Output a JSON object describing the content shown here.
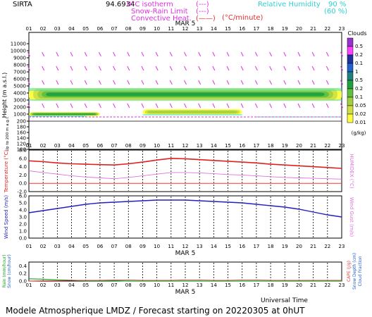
{
  "header": {
    "station": "SIRTA",
    "station_code": "94.6934",
    "legend_0c": "0°C isotherm",
    "legend_0c_sym": "(---)",
    "legend_snowrain": "Snow-Rain Limit",
    "legend_snowrain_sym": "(---)",
    "legend_convective": "Convective Heat.",
    "legend_convective_sym": "(——)",
    "legend_unit": "(°C/minute)",
    "legend_rh": "Relative Humidity",
    "legend_rh_90": "90 %",
    "legend_rh_60": "(60 %)"
  },
  "footer": {
    "universal_time": "Universal Time",
    "model_caption": "Modele Atmospherique LMDZ / Forecast starting on 20220305 at 0hUT"
  },
  "colors": {
    "temperature": "#e02020",
    "humidex": "#e070e0",
    "wind": "#2020c0",
    "rain": "#20a020",
    "snow": "#2060d0",
    "cape": "#e04040",
    "rh": "#30e0e0",
    "zero_line": "#ff3030"
  },
  "chart_data": [
    {
      "type": "heatmap",
      "panel": "clouds",
      "date_label": "MAR  5",
      "hours": [
        "01",
        "02",
        "03",
        "04",
        "05",
        "06",
        "07",
        "08",
        "09",
        "10",
        "11",
        "12",
        "13",
        "14",
        "15",
        "16",
        "17",
        "18",
        "19",
        "20",
        "21",
        "22",
        "23"
      ],
      "ylabel": "Height  (m a.s.l.)",
      "ylabel_low": "Up to 200 m a.g.l.",
      "yticks": [
        "11000",
        "10000",
        "9000",
        "8000",
        "7000",
        "6000",
        "5000",
        "4000",
        "3000",
        "2000",
        "1000",
        "200",
        "180",
        "160",
        "140",
        "120",
        "100"
      ],
      "colorbar_title": "Clouds",
      "colorbar_unit": "(g/kg)",
      "colorbar_labels": [
        "0.5",
        "0.2",
        "0.1",
        "1",
        "0.5",
        "0.2",
        "0.1",
        "0.05",
        "0.02",
        "0.01"
      ],
      "colorbar_colors": [
        "#9b30d0",
        "#ff40ff",
        "#2030a0",
        "#2060d0",
        "#208080",
        "#20a040",
        "#60c040",
        "#a0d040",
        "#d0e040",
        "#ffff40"
      ],
      "layers": [
        {
          "name": "mid-level cloud band",
          "top_m": 4700,
          "base_m": 2900,
          "hour_from": 1,
          "hour_to": 23,
          "max_g_kg": 0.1
        },
        {
          "name": "low cloud early",
          "top_m": 1300,
          "base_m": 700,
          "hour_from": 1,
          "hour_to": 6,
          "max_g_kg": 0.1
        },
        {
          "name": "low cloud midday",
          "top_m": 1700,
          "base_m": 900,
          "hour_from": 9,
          "hour_to": 16,
          "max_g_kg": 0.05
        }
      ]
    },
    {
      "type": "line",
      "panel": "temperature",
      "date_label": "MAR  5",
      "ylabel": "Temperature (°C)",
      "ylabel_right": "HUMIDEX (°C)",
      "yticks": [
        "8.0",
        "6.0",
        "4.0",
        "2.0",
        "0.0",
        "-2.0"
      ],
      "ylim": [
        -2,
        8
      ],
      "x": [
        1,
        2,
        3,
        4,
        5,
        6,
        7,
        8,
        9,
        10,
        11,
        12,
        13,
        14,
        15,
        16,
        17,
        18,
        19,
        20,
        21,
        22,
        23
      ],
      "series": [
        {
          "name": "Temperature",
          "values": [
            5.4,
            5.2,
            4.9,
            4.7,
            4.6,
            4.5,
            4.4,
            4.7,
            5.1,
            5.6,
            6.0,
            5.9,
            5.7,
            5.5,
            5.3,
            5.1,
            4.9,
            4.6,
            4.4,
            4.2,
            4.0,
            3.8,
            3.6
          ]
        },
        {
          "name": "HUMIDEX",
          "values": [
            3.0,
            2.6,
            2.2,
            1.8,
            1.5,
            1.3,
            1.1,
            1.4,
            1.8,
            2.2,
            2.6,
            2.6,
            2.5,
            2.3,
            2.1,
            2.0,
            1.8,
            1.6,
            1.4,
            1.3,
            1.2,
            1.1,
            1.0
          ]
        }
      ]
    },
    {
      "type": "line",
      "panel": "wind",
      "ylabel": "Wind Speed (m/s)",
      "ylabel_right": "Wind Gust (m/s)",
      "yticks": [
        "6.0",
        "5.0",
        "4.0",
        "3.0",
        "2.0",
        "1.0",
        "0.0"
      ],
      "ylim": [
        0,
        6
      ],
      "x": [
        1,
        2,
        3,
        4,
        5,
        6,
        7,
        8,
        9,
        10,
        11,
        12,
        13,
        14,
        15,
        16,
        17,
        18,
        19,
        20,
        21,
        22,
        23
      ],
      "series": [
        {
          "name": "Wind Speed",
          "values": [
            3.6,
            3.9,
            4.2,
            4.5,
            4.8,
            5.0,
            5.1,
            5.2,
            5.3,
            5.4,
            5.4,
            5.4,
            5.3,
            5.2,
            5.1,
            5.0,
            4.8,
            4.6,
            4.4,
            4.1,
            3.7,
            3.3,
            3.0
          ]
        }
      ]
    },
    {
      "type": "line",
      "panel": "precip",
      "date_label": "MAR  5",
      "ylabel": "Rain (mm/hour)",
      "ylabel2": "Snow (cm/hour)",
      "ylabel_right": "CAPE (J/g)",
      "ylabel_right2": "Snow Depth (cm)",
      "ylabel_right3": "Cloud Fraction",
      "yticks": [
        "0.4",
        "0.2",
        "0.0"
      ],
      "ylim": [
        0,
        0.5
      ],
      "x": [
        1,
        2,
        3,
        4,
        5,
        6,
        7,
        8,
        9,
        10,
        11,
        12,
        13,
        14,
        15,
        16,
        17,
        18,
        19,
        20,
        21,
        22,
        23
      ],
      "series": [
        {
          "name": "Rain",
          "values": [
            0.06,
            0.05,
            0.03,
            0.02,
            0.01,
            0.01,
            0.01,
            0.0,
            0.0,
            0.0,
            0.0,
            0.0,
            0.0,
            0.0,
            0.0,
            0.0,
            0.0,
            0.0,
            0.0,
            0.0,
            0.0,
            0.0,
            0.0
          ]
        },
        {
          "name": "CAPE",
          "values": [
            0.0,
            0.01,
            0.01,
            0.02,
            0.02,
            0.02,
            0.03,
            0.03,
            0.02,
            0.02,
            0.02,
            0.03,
            0.03,
            0.02,
            0.02,
            0.03,
            0.03,
            0.02,
            0.02,
            0.02,
            0.02,
            0.02,
            0.02
          ]
        }
      ]
    }
  ]
}
